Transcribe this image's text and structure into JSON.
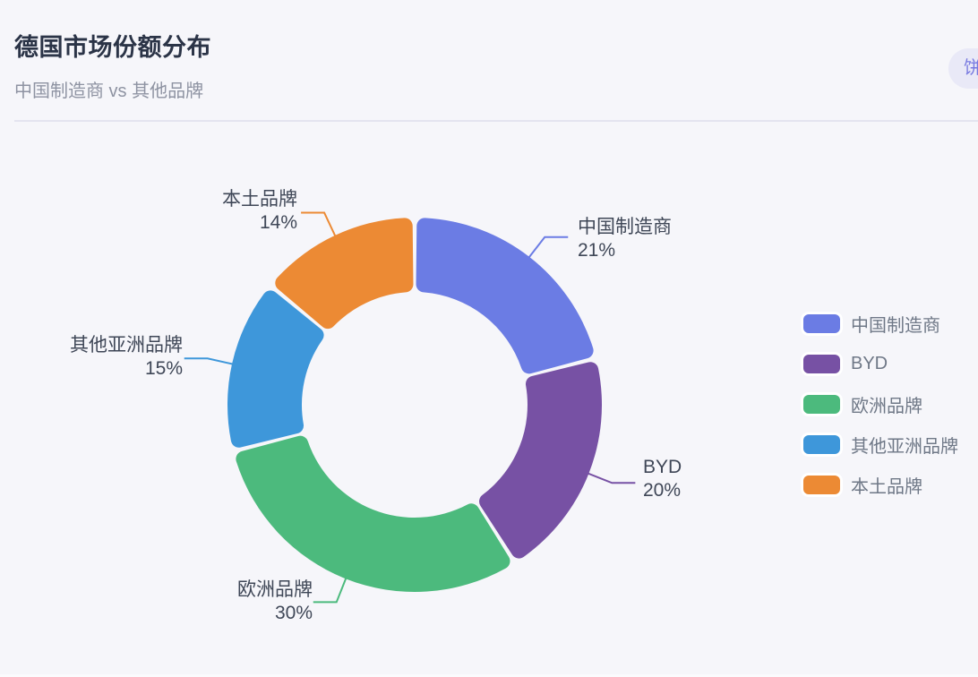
{
  "header": {
    "title": "德国市场份额分布",
    "subtitle": "中国制造商 vs 其他品牌",
    "badge": "饼"
  },
  "chart_data": {
    "type": "pie",
    "donut": true,
    "title": "德国市场份额分布",
    "subtitle": "中国制造商 vs 其他品牌",
    "start_angle": "top",
    "direction": "clockwise",
    "legend_position": "right",
    "labels_outside": true,
    "total": 100,
    "slices": [
      {
        "name": "中国制造商",
        "value": 21,
        "percent_label": "21%",
        "color": "#6B7CE4"
      },
      {
        "name": "BYD",
        "value": 20,
        "percent_label": "20%",
        "color": "#7751A4"
      },
      {
        "name": "欧洲品牌",
        "value": 30,
        "percent_label": "30%",
        "color": "#4CBA7D"
      },
      {
        "name": "其他亚洲品牌",
        "value": 15,
        "percent_label": "15%",
        "color": "#3E97DA"
      },
      {
        "name": "本土品牌",
        "value": 14,
        "percent_label": "14%",
        "color": "#EC8A34"
      }
    ]
  },
  "colors": {
    "background": "#F6F6FA",
    "divider": "#E4E4F0",
    "title_text": "#2B3447",
    "subtitle_text": "#8E93A2",
    "label_text": "#3F4757",
    "legend_text": "#6F7887",
    "badge_background": "#E9E9F7",
    "badge_text": "#7779E0"
  }
}
